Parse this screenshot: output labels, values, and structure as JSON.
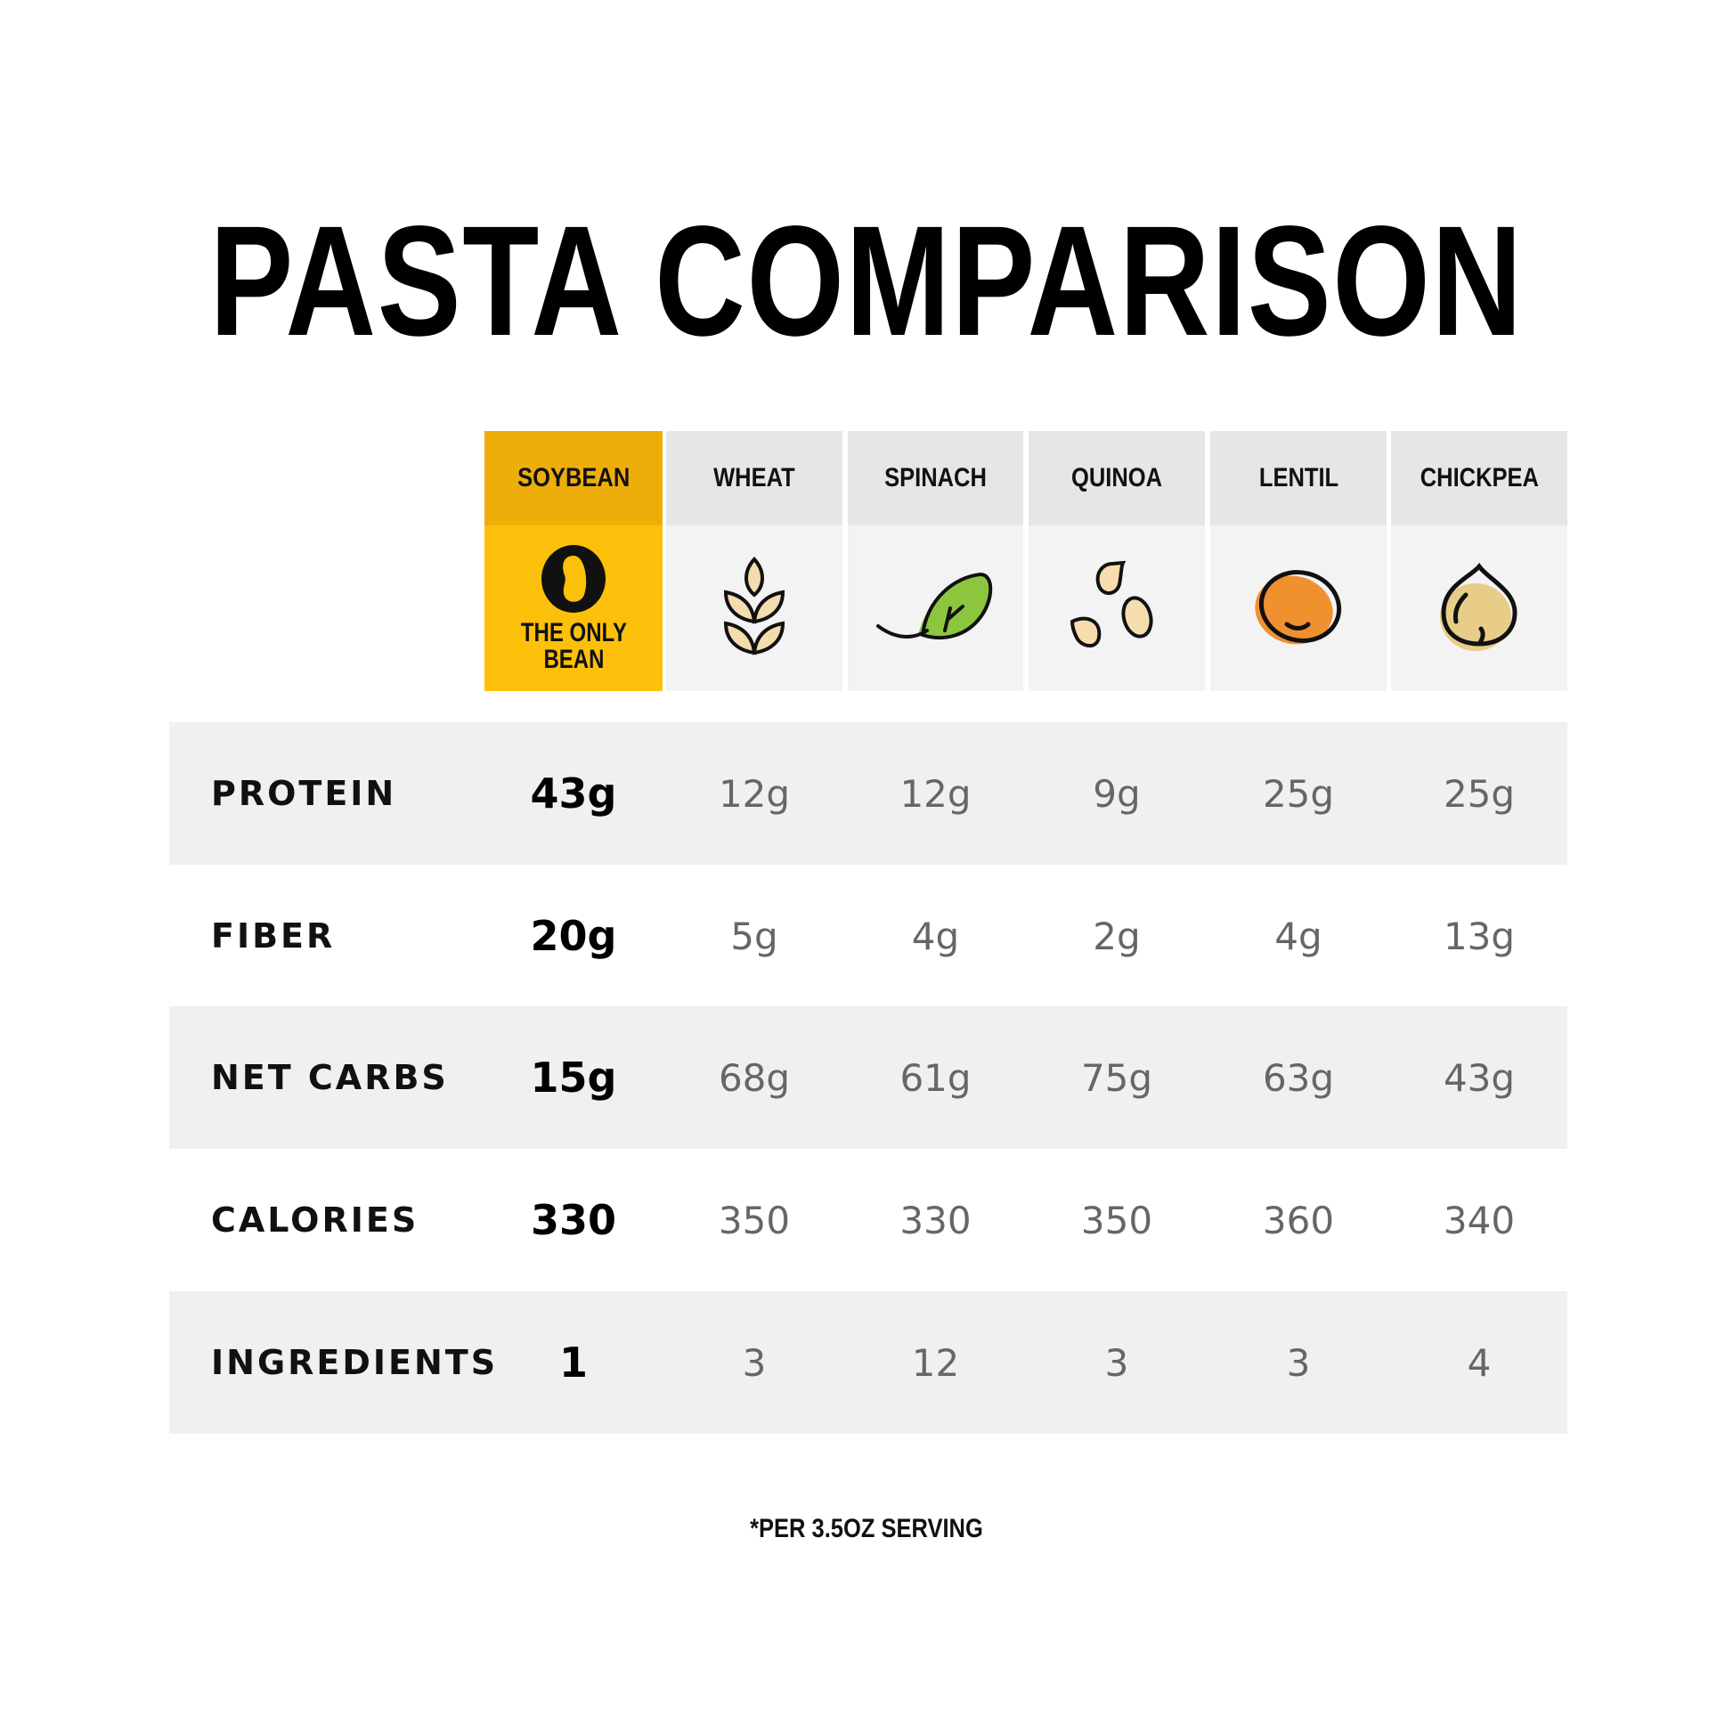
{
  "title": "PASTA COMPARISON",
  "brand": {
    "logo_letter": "O",
    "tagline_line1": "THE ONLY",
    "tagline_line2": "BEAN",
    "highlight_color": "#fdc00a"
  },
  "columns": [
    {
      "label": "SOYBEAN",
      "icon": "brand-bean-logo"
    },
    {
      "label": "WHEAT",
      "icon": "wheat-icon"
    },
    {
      "label": "SPINACH",
      "icon": "spinach-leaf-icon"
    },
    {
      "label": "QUINOA",
      "icon": "quinoa-seeds-icon"
    },
    {
      "label": "LENTIL",
      "icon": "lentil-icon"
    },
    {
      "label": "CHICKPEA",
      "icon": "chickpea-icon"
    }
  ],
  "rows": [
    {
      "label": "PROTEIN",
      "values": [
        "43g",
        "12g",
        "12g",
        "9g",
        "25g",
        "25g"
      ]
    },
    {
      "label": "FIBER",
      "values": [
        "20g",
        "5g",
        "4g",
        "2g",
        "4g",
        "13g"
      ]
    },
    {
      "label": "NET CARBS",
      "values": [
        "15g",
        "68g",
        "61g",
        "75g",
        "63g",
        "43g"
      ]
    },
    {
      "label": "CALORIES",
      "values": [
        "330",
        "350",
        "330",
        "350",
        "360",
        "340"
      ]
    },
    {
      "label": "INGREDIENTS",
      "values": [
        "1",
        "3",
        "12",
        "3",
        "3",
        "4"
      ]
    }
  ],
  "footnote": "*PER 3.5OZ SERVING"
}
